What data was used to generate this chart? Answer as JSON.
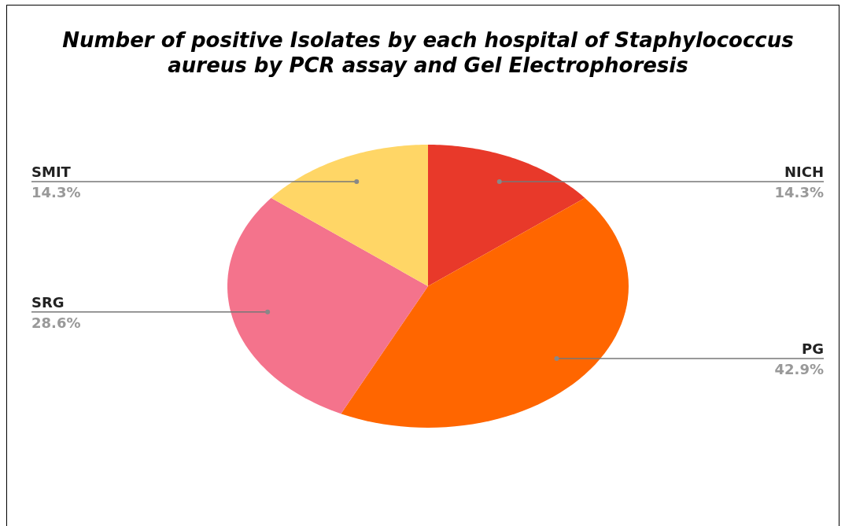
{
  "chart_data": {
    "type": "pie",
    "title": "Number of positive Isolates by each hospital of Staphylococcus aureus by PCR assay and Gel Electrophoresis",
    "categories": [
      "NICH",
      "PG",
      "SRG",
      "SMIT"
    ],
    "values": [
      14.3,
      42.9,
      28.6,
      14.3
    ],
    "colors": [
      "#e8392a",
      "#ff6600",
      "#f4738c",
      "#ffd666"
    ],
    "value_labels": [
      "14.3%",
      "42.9%",
      "28.6%",
      "14.3%"
    ]
  }
}
